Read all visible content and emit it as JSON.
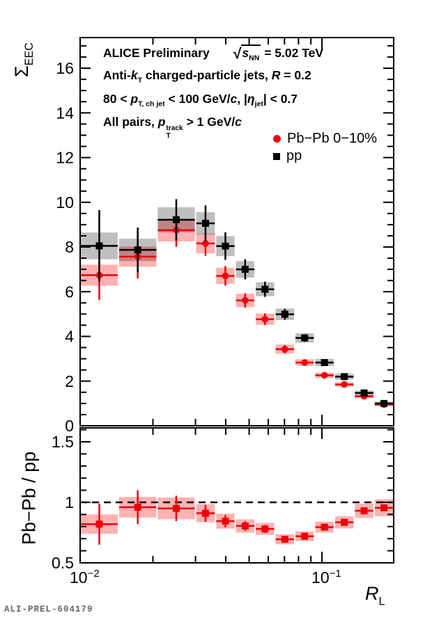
{
  "page": {
    "background": "#ffffff"
  },
  "footer": {
    "figure_id": "ALI-PREL-604179"
  },
  "legend": {
    "items": [
      {
        "label": "Pb−Pb 0−10%",
        "marker": "circle",
        "color": "#ee0009"
      },
      {
        "label": "pp",
        "marker": "square",
        "color": "#000000"
      }
    ]
  },
  "annotations": {
    "lines": [
      {
        "segments": [
          {
            "t": "ALICE Preliminary"
          },
          {
            "gap": 34
          },
          {
            "sqrt": [
              {
                "t": "s",
                "i": true
              },
              {
                "t": "NN",
                "sub": true
              }
            ]
          },
          {
            "t": " = 5.02 TeV"
          }
        ]
      },
      {
        "segments": [
          {
            "t": "Anti-"
          },
          {
            "t": "k",
            "i": true
          },
          {
            "t": "T",
            "sub": true
          },
          {
            "t": " charged-particle jets,  "
          },
          {
            "t": "R",
            "i": true
          },
          {
            "t": " = 0.2"
          }
        ]
      },
      {
        "segments": [
          {
            "t": "80 <  "
          },
          {
            "t": "p",
            "i": true
          },
          {
            "t": "T, ch jet",
            "sub": true
          },
          {
            "t": " < 100 GeV/"
          },
          {
            "t": "c",
            "i": true
          },
          {
            "t": ", |"
          },
          {
            "t": "η",
            "i": true
          },
          {
            "t": "jet",
            "sub": true
          },
          {
            "t": "| < 0.7"
          }
        ]
      },
      {
        "segments": [
          {
            "t": "All pairs,  "
          },
          {
            "t": "p",
            "i": true
          },
          {
            "stack": {
              "sup": "track",
              "sub": "T"
            }
          },
          {
            "t": " > 1 GeV/"
          },
          {
            "t": "c",
            "i": true
          }
        ]
      }
    ]
  },
  "axis_titles": {
    "top_y": [
      {
        "t": "Σ"
      },
      {
        "t": "EEC",
        "sub": true
      }
    ],
    "ratio_y": [
      {
        "t": "Pb−Pb / pp"
      }
    ],
    "x": [
      {
        "t": "R",
        "i": true
      },
      {
        "t": "L",
        "sub": true
      }
    ]
  },
  "chart_data": {
    "type": "errorbar",
    "x_scale": "log",
    "xlim": [
      0.01,
      0.198
    ],
    "x_major_ticks": [
      0.1
    ],
    "x_minor_ticks": [
      0.02,
      0.03,
      0.04,
      0.05,
      0.06,
      0.07,
      0.08,
      0.09
    ],
    "x_tick_labels": [
      {
        "value": 0.01,
        "base": "10",
        "exp": "−2"
      },
      {
        "value": 0.1,
        "base": "10",
        "exp": "−1"
      }
    ],
    "bin_edges": [
      0.01,
      0.0144,
      0.0208,
      0.03,
      0.0363,
      0.0438,
      0.0529,
      0.0639,
      0.0772,
      0.0932,
      0.1126,
      0.136,
      0.1643,
      0.1984
    ],
    "panels": {
      "top": {
        "ylim": [
          0,
          17.37
        ],
        "y_major_ticks": [
          0,
          2,
          4,
          6,
          8,
          10,
          12,
          14,
          16
        ],
        "y_minor_step": 0.5,
        "series": [
          {
            "name": "Pb−Pb 0−10%",
            "marker": "circle",
            "color": "#ee0009",
            "band": "rgba(255,0,0,0.30)",
            "values": [
              6.74,
              7.57,
              8.75,
              8.16,
              6.71,
              5.61,
              4.77,
              3.43,
              2.83,
              2.26,
              1.85,
              1.32,
              0.95
            ],
            "stat_err": [
              1.1,
              0.98,
              0.74,
              0.56,
              0.44,
              0.32,
              0.26,
              0.19,
              0.14,
              0.1,
              0.08,
              0.05,
              0.04
            ],
            "syst_err": [
              0.47,
              0.45,
              0.5,
              0.44,
              0.36,
              0.3,
              0.25,
              0.2,
              0.15,
              0.12,
              0.1,
              0.08,
              0.07
            ]
          },
          {
            "name": "pp",
            "marker": "square",
            "color": "#000000",
            "band": "rgba(0,0,0,0.25)",
            "values": [
              8.05,
              7.87,
              9.22,
              9.06,
              8.04,
              7.0,
              6.11,
              4.99,
              3.93,
              2.83,
              2.2,
              1.47,
              1.0
            ],
            "stat_err": [
              1.6,
              1.0,
              0.92,
              0.8,
              0.62,
              0.45,
              0.34,
              0.24,
              0.17,
              0.12,
              0.09,
              0.06,
              0.05
            ],
            "syst_err": [
              0.6,
              0.5,
              0.56,
              0.5,
              0.45,
              0.37,
              0.31,
              0.26,
              0.21,
              0.16,
              0.13,
              0.1,
              0.08
            ]
          }
        ]
      },
      "ratio": {
        "ylim": [
          0.5,
          1.615
        ],
        "y_major_ticks": [
          0.5,
          1,
          1.5
        ],
        "y_major_labels": [
          "0.5",
          "1",
          "1.5"
        ],
        "y_minor_step": 0.1,
        "reference_line": 1,
        "series": [
          {
            "name": "Pb−Pb / pp",
            "marker": "square",
            "color": "#ee0009",
            "band": "rgba(255,0,0,0.30)",
            "values": [
              0.82,
              0.96,
              0.95,
              0.91,
              0.845,
              0.805,
              0.78,
              0.695,
              0.72,
              0.795,
              0.835,
              0.93,
              0.955
            ],
            "stat_err": [
              0.17,
              0.14,
              0.105,
              0.07,
              0.05,
              0.04,
              0.033,
              0.026,
              0.022,
              0.018,
              0.015,
              0.012,
              0.011
            ],
            "syst_err": [
              0.08,
              0.085,
              0.09,
              0.075,
              0.062,
              0.055,
              0.05,
              0.042,
              0.04,
              0.045,
              0.05,
              0.06,
              0.07
            ]
          }
        ]
      }
    }
  }
}
